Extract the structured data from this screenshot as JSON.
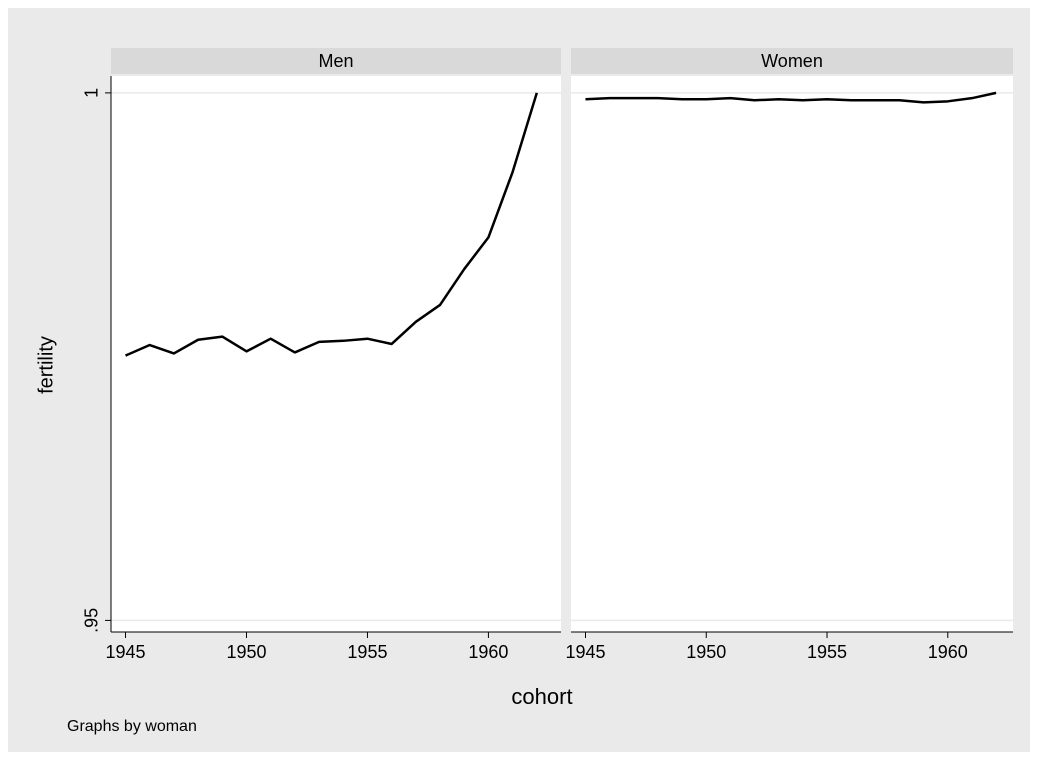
{
  "chart_data": [
    {
      "type": "line",
      "title": "Men",
      "color": "#000000",
      "x": [
        1945,
        1946,
        1947,
        1948,
        1949,
        1950,
        1951,
        1952,
        1953,
        1954,
        1955,
        1956,
        1957,
        1958,
        1959,
        1960,
        1961,
        1962
      ],
      "values": [
        0.9751,
        0.9761,
        0.9753,
        0.9766,
        0.9769,
        0.9755,
        0.9767,
        0.9754,
        0.9764,
        0.9765,
        0.9767,
        0.9762,
        0.9783,
        0.9799,
        0.9833,
        0.9863,
        0.9925,
        1.0
      ],
      "xlim": [
        1944.4,
        1963
      ],
      "ylim": [
        0.9489,
        1.0016
      ],
      "xticks": [
        1945,
        1950,
        1955,
        1960
      ],
      "yticks": [
        {
          "value": 0.95,
          "label": ".95"
        },
        1
      ],
      "grid": true
    },
    {
      "type": "line",
      "title": "Women",
      "color": "#000000",
      "x": [
        1945,
        1946,
        1947,
        1948,
        1949,
        1950,
        1951,
        1952,
        1953,
        1954,
        1955,
        1956,
        1957,
        1958,
        1959,
        1960,
        1961,
        1962
      ],
      "values": [
        0.9994,
        0.9995,
        0.9995,
        0.9995,
        0.9994,
        0.9994,
        0.9995,
        0.9993,
        0.9994,
        0.9993,
        0.9994,
        0.9993,
        0.9993,
        0.9993,
        0.9991,
        0.9992,
        0.9995,
        1.0
      ],
      "xlim": [
        1944.4,
        1962.7
      ],
      "ylim": [
        0.9489,
        1.0016
      ],
      "xticks": [
        1945,
        1950,
        1955,
        1960
      ],
      "grid": true
    }
  ],
  "x_label": "cohort",
  "y_label": "fertility",
  "note": "Graphs by woman"
}
